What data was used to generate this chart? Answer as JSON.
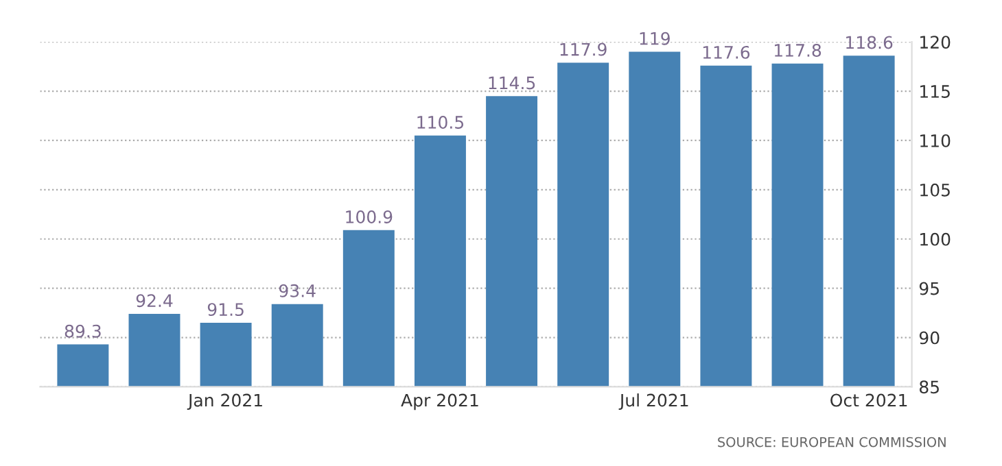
{
  "chart_data": {
    "type": "bar",
    "categories": [
      null,
      null,
      "Jan 2021",
      null,
      null,
      "Apr 2021",
      null,
      null,
      "Jul 2021",
      null,
      null,
      "Oct 2021"
    ],
    "values": [
      89.3,
      92.4,
      91.5,
      93.4,
      100.9,
      110.5,
      114.5,
      117.9,
      119,
      117.6,
      117.8,
      118.6
    ],
    "color": "#4682b4",
    "ylim": [
      85,
      120
    ],
    "yticks": [
      85,
      90,
      95,
      100,
      105,
      110,
      115,
      120
    ],
    "grid": "y",
    "data_labels": true,
    "annotations": [
      "SOURCE: EUROPEAN COMMISSION"
    ]
  }
}
